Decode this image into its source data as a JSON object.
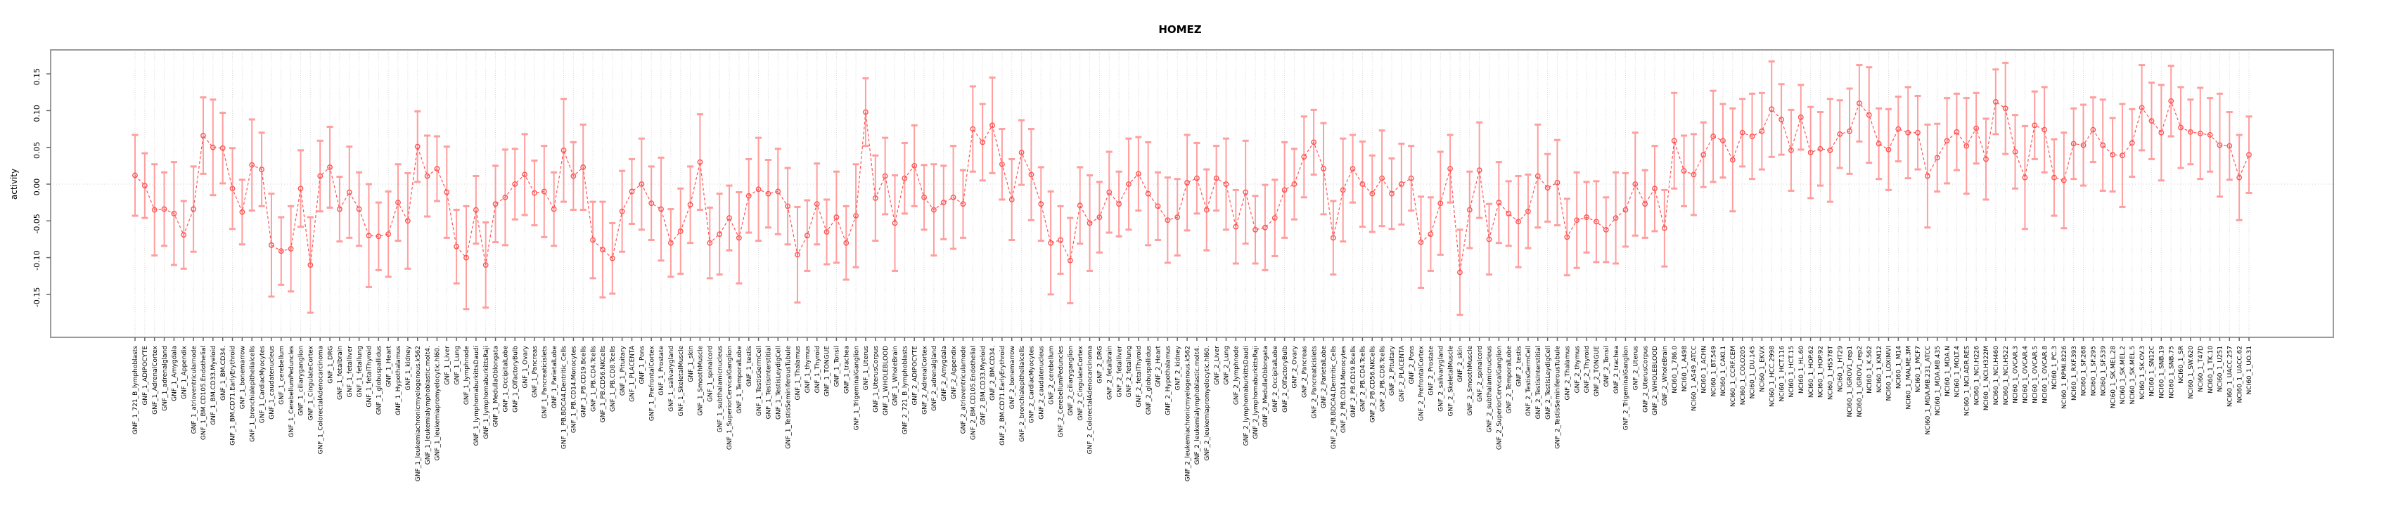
{
  "title": "HOMEZ",
  "chart_data": {
    "type": "line",
    "title": "HOMEZ",
    "xlabel": "",
    "ylabel": "activity",
    "ylim": [
      -0.21,
      0.18
    ],
    "yticks": [
      "0.15",
      "0.10",
      "0.05",
      "0.00",
      "-0.05",
      "-0.10",
      "-0.15"
    ],
    "ytick_values": [
      0.15,
      0.1,
      0.05,
      0.0,
      -0.05,
      -0.1,
      -0.15
    ],
    "zero_line": 0.0,
    "grid": "vertical-dotted-per-category",
    "legend": "none",
    "marker": "open-circle",
    "line_style": "dashed",
    "colors": {
      "point": "#ff5252",
      "line": "#ff5252",
      "errorbar": "#ff9e9e",
      "box": "#9a9a9a",
      "tick": "#666666",
      "grid": "#d9d9d9",
      "zero_line": "#cccccc",
      "background": "#ffffff",
      "text": "#000000"
    },
    "categories": [
      "GNF_1_721_B_lymphoblasts",
      "GNF_1_ADIPOCYTE",
      "GNF_1_AdrenalCortex",
      "GNF_1_adrenalgland",
      "GNF_1_Amygdala",
      "GNF_1_Appendix",
      "GNF_1_atrioventricularnode",
      "GNF_1_BM.CD105.Endothelial",
      "GNF_1_BM.CD33.Myeloid",
      "GNF_1_BM.CD34.",
      "GNF_1_BM.CD71.EarlyErythroid",
      "GNF_1_bonemarrow",
      "GNF_1_bronchialepithelialcells",
      "GNF_1_CardiacMyocytes",
      "GNF_1_caudatenucleus",
      "GNF_1_cerebellum",
      "GNF_1_CerebellumPeduncles",
      "GNF_1_ciliaryganglion",
      "GNF_1_CingulateCortex",
      "GNF_1_ColorectalAdenocarcinoma",
      "GNF_1_DRG",
      "GNF_1_fetalbrain",
      "GNF_1_fetalliver",
      "GNF_1_fetallung",
      "GNF_1_fetalThyroid",
      "GNF_1_globuspallidus",
      "GNF_1_Heart",
      "GNF_1_Hypothalamus",
      "GNF_1_kidney",
      "GNF_1_leukemiachronicmyelogenous.k562",
      "GNF_1_leukemialymphoblastic.molt4.",
      "GNF_1_leukemiapromyelocytic.hl60.",
      "GNF_1_Liver",
      "GNF_1_Lung",
      "GNF_1_lymphnode",
      "GNF_1_lymphomaburkittsDaudi",
      "GNF_1_lymphomaburkittsRaji",
      "GNF_1_MedullaOblongata",
      "GNF_1_OccipitalLobe",
      "GNF_1_OlfactoryBulb",
      "GNF_1_Ovary",
      "GNF_1_Pancreas",
      "GNF_1_Pancreaticislets",
      "GNF_1_ParietalLobe",
      "GNF_1_PB.BDCA4.Dentritic_Cells",
      "GNF_1_PB.CD14.Monocytes",
      "GNF_1_PB.CD19.Bcells",
      "GNF_1_PB.CD4.Tcells",
      "GNF_1_PB.CD56.NKCells",
      "GNF_1_PB.CD8.Tcells",
      "GNF_1_Pituitary",
      "GNF_1_PLACENTA",
      "GNF_1_Pons",
      "GNF_1_PrefrontalCortex",
      "GNF_1_Prostate",
      "GNF_1_salivarygland",
      "GNF_1_SkeletalMuscle",
      "GNF_1_skin",
      "GNF_1_SmoothMuscle",
      "GNF_1_spinalcord",
      "GNF_1_subthalamicnucleus",
      "GNF_1_SuperiorCervicalGanglion",
      "GNF_1_TemporalLobe",
      "GNF_1_testis",
      "GNF_1_TestisGermCell",
      "GNF_1_TestisInterstitial",
      "GNF_1_TestisLeydigCell",
      "GNF_1_TestisSeminiferousTubule",
      "GNF_1_Thalamus",
      "GNF_1_thymus",
      "GNF_1_Thyroid",
      "GNF_1_TONGUE",
      "GNF_1_Tonsil",
      "GNF_1_trachea",
      "GNF_1_TrigeminalGanglion",
      "GNF_1_Uterus",
      "GNF_1_UterusCorpus",
      "GNF_1_WHOLEBLOOD",
      "GNF_1_WholeBrain",
      "GNF_2_721_B_lymphoblasts",
      "GNF_2_ADIPOCYTE",
      "GNF_2_AdrenalCortex",
      "GNF_2_adrenalgland",
      "GNF_2_Amygdala",
      "GNF_2_Appendix",
      "GNF_2_atrioventricularnode",
      "GNF_2_BM.CD105.Endothelial",
      "GNF_2_BM.CD33.Myeloid",
      "GNF_2_BM.CD34.",
      "GNF_2_BM.CD71.EarlyErythroid",
      "GNF_2_bonemarrow",
      "GNF_2_bronchialepithelialcells",
      "GNF_2_CardiacMyocytes",
      "GNF_2_caudatenucleus",
      "GNF_2_cerebellum",
      "GNF_2_CerebellumPeduncles",
      "GNF_2_ciliaryganglion",
      "GNF_2_CingulateCortex",
      "GNF_2_ColorectalAdenocarcinoma",
      "GNF_2_DRG",
      "GNF_2_fetalbrain",
      "GNF_2_fetalliver",
      "GNF_2_fetallung",
      "GNF_2_fetalThyroid",
      "GNF_2_globuspallidus",
      "GNF_2_Heart",
      "GNF_2_Hypothalamus",
      "GNF_2_kidney",
      "GNF_2_leukemiachronicmyelogenous.k562",
      "GNF_2_leukemialymphoblastic.molt4.",
      "GNF_2_leukemiapromyelocytic.hl60.",
      "GNF_2_Liver",
      "GNF_2_Lung",
      "GNF_2_lymphnode",
      "GNF_2_lymphomaburkittsDaudi",
      "GNF_2_lymphomaburkittsRaji",
      "GNF_2_MedullaOblongata",
      "GNF_2_OccipitalLobe",
      "GNF_2_OlfactoryBulb",
      "GNF_2_Ovary",
      "GNF_2_Pancreas",
      "GNF_2_Pancreaticislets",
      "GNF_2_ParietalLobe",
      "GNF_2_PB.BDCA4.Dentritic_Cells",
      "GNF_2_PB.CD14.Monocytes",
      "GNF_2_PB.CD19.Bcells",
      "GNF_2_PB.CD4.Tcells",
      "GNF_2_PB.CD56.NKCells",
      "GNF_2_PB.CD8.Tcells",
      "GNF_2_Pituitary",
      "GNF_2_PLACENTA",
      "GNF_2_Pons",
      "GNF_2_PrefrontalCortex",
      "GNF_2_Prostate",
      "GNF_2_salivarygland",
      "GNF_2_SkeletalMuscle",
      "GNF_2_skin",
      "GNF_2_SmoothMuscle",
      "GNF_2_spinalcord",
      "GNF_2_subthalamicnucleus",
      "GNF_2_SuperiorCervicalGanglion",
      "GNF_2_TemporalLobe",
      "GNF_2_testis",
      "GNF_2_TestisGermCell",
      "GNF_2_TestisInterstitial",
      "GNF_2_TestisLeydigCell",
      "GNF_2_TestisSeminiferousTubule",
      "GNF_2_Thalamus",
      "GNF_2_thymus",
      "GNF_2_Thyroid",
      "GNF_2_TONGUE",
      "GNF_2_Tonsil",
      "GNF_2_trachea",
      "GNF_2_TrigeminalGanglion",
      "GNF_2_Uterus",
      "GNF_2_UterusCorpus",
      "GNF_2_WHOLEBLOOD",
      "GNF_2_WholeBrain",
      "NCI60_1_786.0",
      "NCI60_1_A498",
      "NCI60_1_A549_ATCC",
      "NCI60_1_ACHN",
      "NCI60_1_BT.549",
      "NCI60_1_CAKI.1",
      "NCI60_1_CCRF.CEM",
      "NCI60_1_COLO205",
      "NCI60_1_DU.145",
      "NCI60_1_EKVX",
      "NCI60_1_HCC.2998",
      "NCI60_1_HCT.116",
      "NCI60_1_HCT.15",
      "NCI60_1_HL.60",
      "NCI60_1_HOP.62",
      "NCI60_1_HOP.92",
      "NCI60_1_HS578T",
      "NCI60_1_HT29",
      "NCI60_1_IGROV1_rep1",
      "NCI60_1_IGROV1_rep2",
      "NCI60_1_K.562",
      "NCI60_1_KM12",
      "NCI60_1_LOXIMVI",
      "NCI60_1_M14",
      "NCI60_1_MALME.3M",
      "NCI60_1_MCF7",
      "NCI60_1_MDA.MB.231_ATCC",
      "NCI60_1_MDA.MB.435",
      "NCI60_1_MDA.N",
      "NCI60_1_MOLT.4",
      "NCI60_1_NCI.ADR.RES",
      "NCI60_1_NCI.H226",
      "NCI60_1_NCI.H322M",
      "NCI60_1_NCI.H460",
      "NCI60_1_NCI.H522",
      "NCI60_1_OVCAR.3",
      "NCI60_1_OVCAR.4",
      "NCI60_1_OVCAR.5",
      "NCI60_1_OVCAR.8",
      "NCI60_1_PC.3",
      "NCI60_1_RPMI.8226",
      "NCI60_1_RXF.393",
      "NCI60_1_SF.268",
      "NCI60_1_SF.295",
      "NCI60_1_SF.539",
      "NCI60_1_SK.MEL.28",
      "NCI60_1_SK.MEL.2",
      "NCI60_1_SK.MEL.5",
      "NCI60_1_SK.OV.3",
      "NCI60_1_SN12C",
      "NCI60_1_SNB.19",
      "NCI60_1_SNB.75",
      "NCI60_1_SR",
      "NCI60_1_SW.620",
      "NCI60_1_T47D",
      "NCI60_1_TK.10",
      "NCI60_1_U251",
      "NCI60_1_UACC.257",
      "NCI60_1_UACC.62",
      "NCI60_1_UO.31"
    ],
    "values": [
      0.012,
      -0.002,
      -0.035,
      -0.034,
      -0.04,
      -0.069,
      -0.034,
      0.066,
      0.05,
      0.049,
      -0.006,
      -0.038,
      0.026,
      0.02,
      -0.083,
      -0.091,
      -0.088,
      -0.006,
      -0.11,
      0.011,
      0.023,
      -0.034,
      -0.011,
      -0.034,
      -0.07,
      -0.071,
      -0.068,
      -0.025,
      -0.05,
      0.051,
      0.011,
      0.021,
      -0.011,
      -0.085,
      -0.1,
      -0.035,
      -0.11,
      -0.027,
      -0.018,
      0.0,
      0.013,
      -0.012,
      -0.01,
      -0.034,
      0.046,
      0.011,
      0.023,
      -0.076,
      -0.089,
      -0.101,
      -0.037,
      -0.01,
      0.0,
      -0.026,
      -0.034,
      -0.08,
      -0.064,
      -0.028,
      0.03,
      -0.08,
      -0.068,
      -0.046,
      -0.073,
      -0.016,
      -0.007,
      -0.013,
      -0.01,
      -0.03,
      -0.096,
      -0.07,
      -0.027,
      -0.065,
      -0.045,
      -0.08,
      -0.043,
      0.098,
      -0.019,
      0.011,
      -0.053,
      0.008,
      0.025,
      -0.018,
      -0.035,
      -0.025,
      -0.018,
      -0.027,
      0.075,
      0.057,
      0.08,
      0.027,
      -0.021,
      0.043,
      0.013,
      -0.027,
      -0.08,
      -0.076,
      -0.104,
      -0.029,
      -0.053,
      -0.045,
      -0.011,
      -0.027,
      0.0,
      0.014,
      -0.013,
      -0.03,
      -0.049,
      -0.045,
      0.002,
      0.008,
      -0.035,
      0.008,
      0.0,
      -0.058,
      -0.011,
      -0.062,
      -0.059,
      -0.046,
      -0.008,
      0.0,
      0.037,
      0.057,
      0.021,
      -0.073,
      -0.008,
      0.021,
      0.0,
      -0.013,
      0.008,
      -0.013,
      0.0,
      0.008,
      -0.079,
      -0.068,
      -0.026,
      0.021,
      -0.12,
      -0.035,
      0.019,
      -0.075,
      -0.025,
      -0.04,
      -0.051,
      -0.037,
      0.011,
      -0.005,
      0.002,
      -0.072,
      -0.049,
      -0.045,
      -0.051,
      -0.062,
      -0.046,
      -0.035,
      0.0,
      -0.027,
      -0.006,
      -0.06,
      0.059,
      0.018,
      0.013,
      0.04,
      0.065,
      0.059,
      0.033,
      0.07,
      0.065,
      0.072,
      0.102,
      0.088,
      0.046,
      0.091,
      0.043,
      0.048,
      0.046,
      0.068,
      0.072,
      0.11,
      0.094,
      0.055,
      0.047,
      0.075,
      0.07,
      0.07,
      0.011,
      0.036,
      0.059,
      0.071,
      0.052,
      0.076,
      0.034,
      0.112,
      0.103,
      0.044,
      0.009,
      0.08,
      0.074,
      0.009,
      0.005,
      0.055,
      0.053,
      0.074,
      0.053,
      0.04,
      0.039,
      0.056,
      0.104,
      0.086,
      0.07,
      0.113,
      0.077,
      0.071,
      0.069,
      0.067,
      0.053,
      0.052,
      0.009,
      0.04
    ],
    "errors": [
      0.055,
      0.044,
      0.062,
      0.05,
      0.07,
      0.046,
      0.058,
      0.052,
      0.065,
      0.048,
      0.055,
      0.044,
      0.062,
      0.05,
      0.07,
      0.046,
      0.058,
      0.052,
      0.065,
      0.048,
      0.055,
      0.044,
      0.062,
      0.05,
      0.07,
      0.046,
      0.058,
      0.052,
      0.065,
      0.048,
      0.055,
      0.044,
      0.062,
      0.05,
      0.07,
      0.046,
      0.058,
      0.052,
      0.065,
      0.048,
      0.055,
      0.044,
      0.062,
      0.05,
      0.07,
      0.046,
      0.058,
      0.052,
      0.065,
      0.048,
      0.055,
      0.044,
      0.062,
      0.05,
      0.07,
      0.046,
      0.058,
      0.052,
      0.065,
      0.048,
      0.055,
      0.044,
      0.062,
      0.05,
      0.07,
      0.046,
      0.058,
      0.052,
      0.065,
      0.048,
      0.055,
      0.044,
      0.062,
      0.05,
      0.07,
      0.046,
      0.058,
      0.052,
      0.065,
      0.048,
      0.055,
      0.044,
      0.062,
      0.05,
      0.07,
      0.046,
      0.058,
      0.052,
      0.065,
      0.048,
      0.055,
      0.044,
      0.062,
      0.05,
      0.07,
      0.046,
      0.058,
      0.052,
      0.065,
      0.048,
      0.055,
      0.044,
      0.062,
      0.05,
      0.07,
      0.046,
      0.058,
      0.052,
      0.065,
      0.048,
      0.055,
      0.044,
      0.062,
      0.05,
      0.07,
      0.046,
      0.058,
      0.052,
      0.065,
      0.048,
      0.055,
      0.044,
      0.062,
      0.05,
      0.07,
      0.046,
      0.058,
      0.052,
      0.065,
      0.048,
      0.055,
      0.044,
      0.062,
      0.05,
      0.07,
      0.046,
      0.058,
      0.052,
      0.065,
      0.048,
      0.055,
      0.044,
      0.062,
      0.05,
      0.07,
      0.046,
      0.058,
      0.052,
      0.065,
      0.048,
      0.055,
      0.044,
      0.062,
      0.05,
      0.07,
      0.046,
      0.058,
      0.052,
      0.065,
      0.048,
      0.055,
      0.044,
      0.062,
      0.05,
      0.07,
      0.046,
      0.058,
      0.052,
      0.065,
      0.048,
      0.055,
      0.044,
      0.062,
      0.05,
      0.07,
      0.046,
      0.058,
      0.052,
      0.065,
      0.048,
      0.055,
      0.044,
      0.062,
      0.05,
      0.07,
      0.046,
      0.058,
      0.052,
      0.065,
      0.048,
      0.055,
      0.044,
      0.062,
      0.05,
      0.07,
      0.046,
      0.058,
      0.052,
      0.065,
      0.048,
      0.055,
      0.044,
      0.062,
      0.05,
      0.07,
      0.046,
      0.058,
      0.052,
      0.065,
      0.048,
      0.055,
      0.044,
      0.062,
      0.05,
      0.07,
      0.046,
      0.058,
      0.052
    ]
  }
}
